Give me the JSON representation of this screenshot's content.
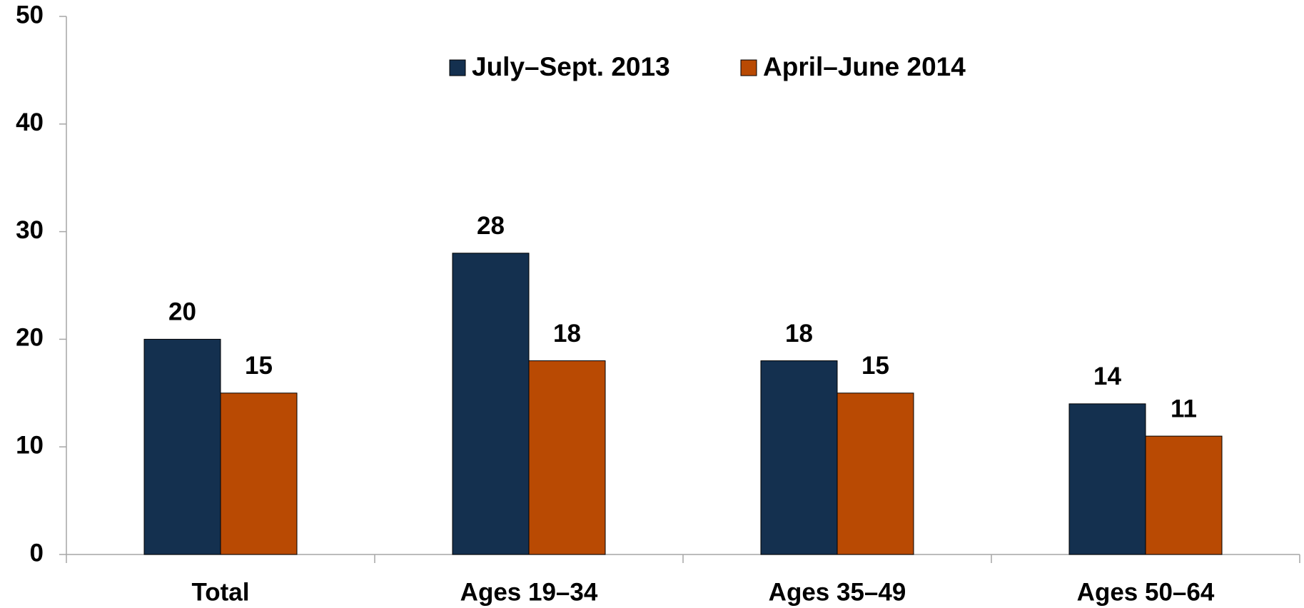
{
  "chart_data": {
    "type": "bar",
    "categories": [
      "Total",
      "Ages 19–34",
      "Ages 35–49",
      "Ages 50–64"
    ],
    "series": [
      {
        "name": "July–Sept. 2013",
        "color": "#14304f",
        "values": [
          20,
          28,
          18,
          14
        ]
      },
      {
        "name": "April–June 2014",
        "color": "#b94a03",
        "values": [
          15,
          18,
          15,
          11
        ]
      }
    ],
    "ylim": [
      0,
      50
    ],
    "yticks": [
      0,
      10,
      20,
      30,
      40,
      50
    ],
    "grid": false,
    "legend": "top"
  }
}
